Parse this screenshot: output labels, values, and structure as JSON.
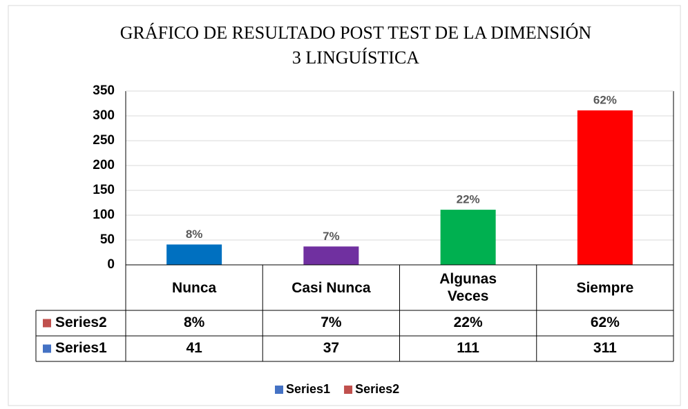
{
  "chart_data": {
    "type": "bar",
    "title": [
      "GRÁFICO DE RESULTADO POST TEST DE LA DIMENSIÓN",
      "3 LINGUÍSTICA"
    ],
    "categories": [
      "Nunca",
      "Casi Nunca",
      "Algunas Veces",
      "Siempre"
    ],
    "series": [
      {
        "name": "Series1",
        "color": "#4472c4",
        "bar_colors": [
          "#0070c0",
          "#7030a0",
          "#00b050",
          "#ff0000"
        ],
        "values": [
          41,
          37,
          111,
          311
        ]
      },
      {
        "name": "Series2",
        "color": "#c0504d",
        "values": [
          8,
          7,
          22,
          62
        ],
        "value_labels": [
          "8%",
          "7%",
          "22%",
          "62%"
        ]
      }
    ],
    "ylim": [
      0,
      350
    ],
    "yticks": [
      0,
      50,
      100,
      150,
      200,
      250,
      300,
      350
    ],
    "grid": true,
    "legend": "bottom"
  }
}
